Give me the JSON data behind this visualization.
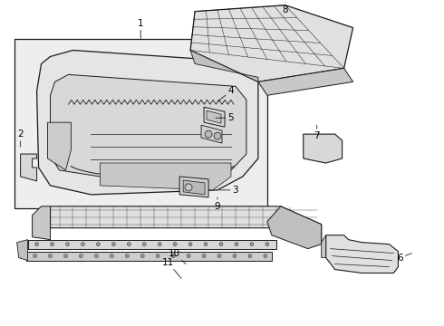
{
  "bg_color": "#ffffff",
  "line_color": "#1a1a1a",
  "shade_color": "#d8d8d8",
  "light_shade": "#e8e8e8",
  "label_fontsize": 7.5
}
